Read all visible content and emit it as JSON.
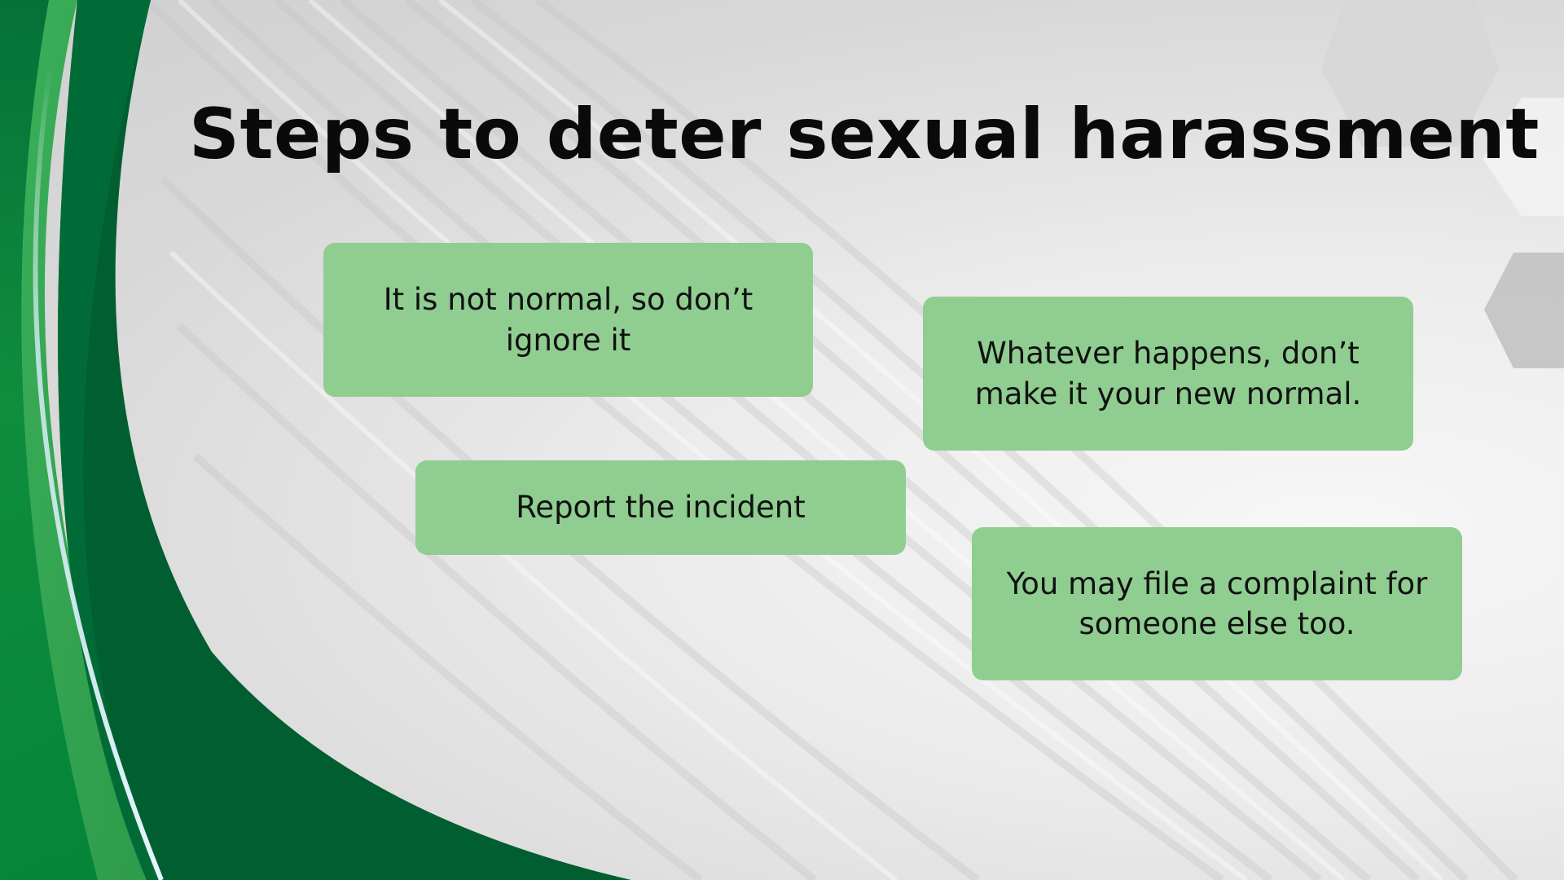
{
  "title": "Steps to deter sexual harassment",
  "cards": [
    {
      "text": "It is not normal, so don’t ignore it"
    },
    {
      "text": "Whatever happens, don’t make it your new normal."
    },
    {
      "text": "Report the incident"
    },
    {
      "text": "You may file a complaint for someone else too."
    }
  ],
  "colors": {
    "card_background": "#90cd91",
    "green_dark": "#005e30",
    "green_light": "#3fae57",
    "title_text": "#0a0a0a"
  }
}
